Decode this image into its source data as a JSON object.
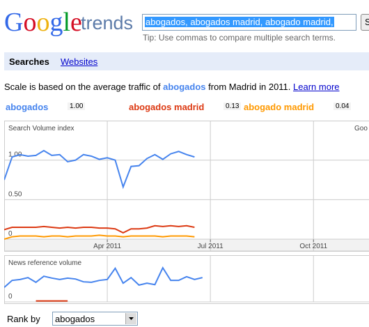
{
  "header": {
    "logo": "Google",
    "product": "trends",
    "search_query": "abogados, abogados madrid, abogado madrid,",
    "search_button": "S",
    "tip": "Tip: Use commas to compare multiple search terms."
  },
  "tabs": [
    "Searches",
    "Websites"
  ],
  "scale_note": {
    "before": "Scale is based on the average traffic of ",
    "term": "abogados",
    "after": " from Madrid in 2011.",
    "link": "Learn more"
  },
  "chart_data": [
    {
      "type": "line",
      "title": "Search Volume index",
      "corner_text": "Goo",
      "x": [
        0,
        1,
        2,
        3,
        4,
        5,
        6,
        7,
        8,
        9,
        10,
        11,
        12,
        13,
        14,
        15,
        16,
        17,
        18,
        19,
        20,
        21,
        22,
        23,
        24
      ],
      "xlim": [
        0,
        46
      ],
      "xticks": [
        {
          "value": 13,
          "label": "Apr 2011"
        },
        {
          "value": 26,
          "label": "Jul 2011"
        },
        {
          "value": 39,
          "label": "Oct 2011"
        }
      ],
      "ylim": [
        0,
        1.5
      ],
      "yticks": [
        {
          "value": 1,
          "label": "1.00"
        },
        {
          "value": 0.5,
          "label": "0.50"
        },
        0
      ],
      "grid": true,
      "series": [
        {
          "name": "abogados",
          "scale_label": "1.00",
          "color": "#4684ee",
          "values": [
            0.75,
            1.04,
            1.07,
            1.05,
            1.06,
            1.12,
            1.06,
            1.07,
            0.98,
            1.0,
            1.07,
            1.05,
            1.01,
            1.03,
            1.0,
            0.66,
            0.92,
            0.93,
            1.02,
            1.07,
            1.01,
            1.08,
            1.11,
            1.07,
            1.04
          ]
        },
        {
          "name": "abogados madrid",
          "scale_label": "0.13",
          "color": "#dc3912",
          "values": [
            0.12,
            0.15,
            0.15,
            0.15,
            0.15,
            0.16,
            0.15,
            0.14,
            0.15,
            0.14,
            0.15,
            0.15,
            0.14,
            0.14,
            0.13,
            0.08,
            0.13,
            0.13,
            0.14,
            0.17,
            0.16,
            0.17,
            0.16,
            0.17,
            0.15
          ]
        },
        {
          "name": "abogado madrid",
          "scale_label": "0.04",
          "color": "#ff9900",
          "values": [
            0.0,
            0.03,
            0.04,
            0.04,
            0.04,
            0.03,
            0.04,
            0.04,
            0.03,
            0.04,
            0.04,
            0.04,
            0.05,
            0.04,
            0.04,
            0.03,
            0.04,
            0.04,
            0.04,
            0.04,
            0.03,
            0.04,
            0.04,
            0.04,
            0.03
          ]
        }
      ]
    },
    {
      "type": "line",
      "title": "News reference volume",
      "x": [
        0,
        1,
        2,
        3,
        4,
        5,
        6,
        7,
        8,
        9,
        10,
        11,
        12,
        13,
        14,
        15,
        16,
        17,
        18,
        19,
        20,
        21,
        22,
        23,
        24,
        25
      ],
      "xlim": [
        0,
        46
      ],
      "xticks": [
        {
          "value": 13,
          "label": ""
        },
        {
          "value": 26,
          "label": ""
        },
        {
          "value": 39,
          "label": ""
        }
      ],
      "ylim": [
        0,
        1
      ],
      "yticks": [
        0
      ],
      "grid": true,
      "series": [
        {
          "color": "#4684ee",
          "values": [
            0.31,
            0.46,
            0.48,
            0.52,
            0.42,
            0.55,
            0.51,
            0.48,
            0.51,
            0.49,
            0.43,
            0.42,
            0.46,
            0.48,
            0.72,
            0.4,
            0.52,
            0.36,
            0.4,
            0.37,
            0.73,
            0.46,
            0.46,
            0.54,
            0.48,
            0.52
          ]
        },
        {
          "color": "#dc3912",
          "values": [
            null,
            null,
            null,
            null,
            0.02,
            0.02,
            0.02,
            0.02,
            0.02,
            null,
            null,
            null,
            null,
            null,
            null,
            null,
            null,
            null,
            null,
            null,
            null,
            null,
            null,
            null,
            null,
            null
          ]
        }
      ]
    }
  ],
  "rank": {
    "label": "Rank by",
    "selected": "abogados"
  }
}
